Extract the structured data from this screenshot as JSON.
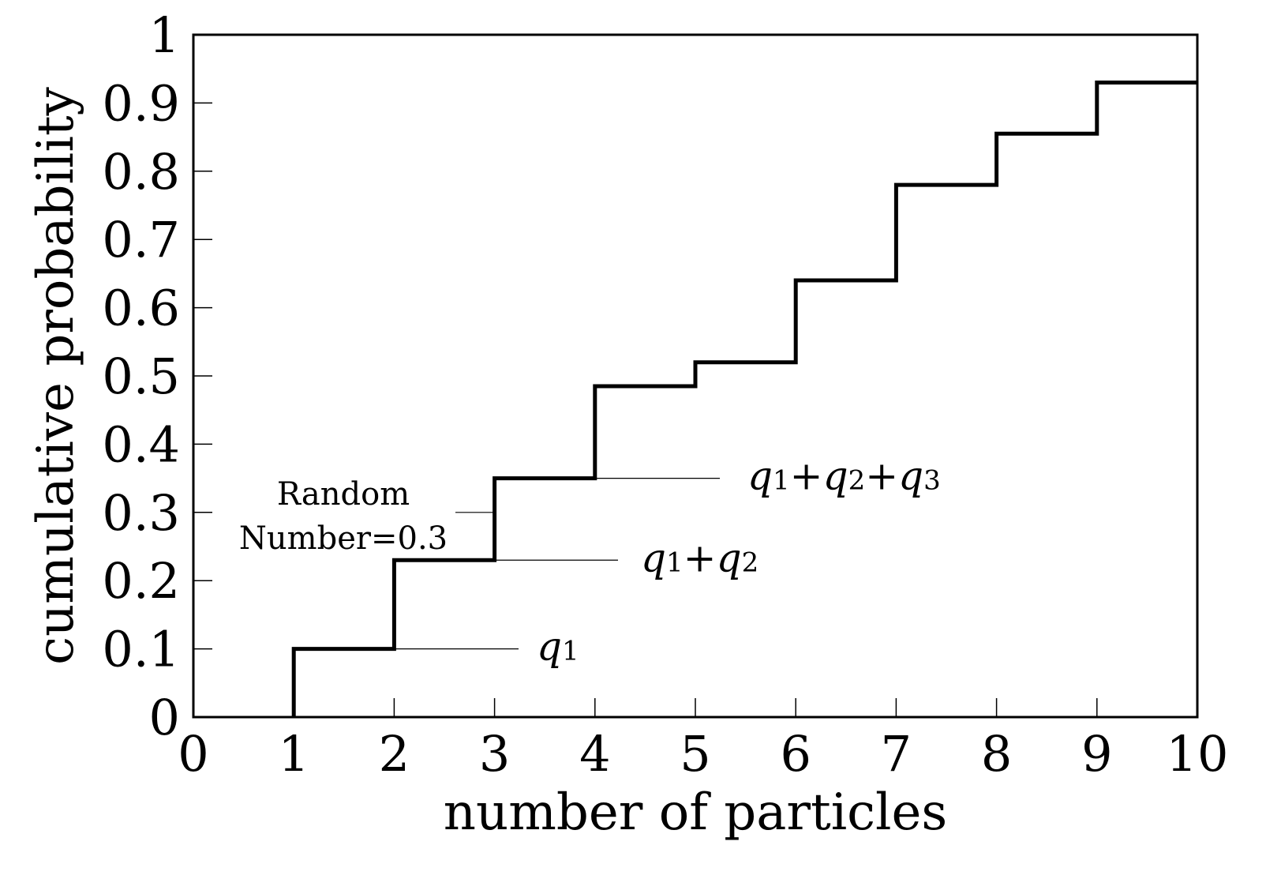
{
  "chart_data": {
    "type": "line",
    "step": "post",
    "x": [
      1,
      2,
      3,
      4,
      5,
      6,
      7,
      8,
      9,
      10
    ],
    "y": [
      0.1,
      0.23,
      0.35,
      0.485,
      0.52,
      0.64,
      0.78,
      0.855,
      0.93,
      0.93
    ],
    "xlabel": "number of particles",
    "ylabel": "cumulative probability",
    "xlim": [
      0,
      10
    ],
    "ylim": [
      0,
      1
    ],
    "xticks": [
      "0",
      "1",
      "2",
      "3",
      "4",
      "5",
      "6",
      "7",
      "8",
      "9",
      "10"
    ],
    "yticks": [
      "0",
      "0.1",
      "0.2",
      "0.3",
      "0.4",
      "0.5",
      "0.6",
      "0.7",
      "0.8",
      "0.9",
      "1"
    ],
    "grid": false,
    "annotations": {
      "random_number": {
        "line1": "Random",
        "line2": "Number=0.3",
        "x": 3,
        "y": 0.3
      },
      "q1": {
        "y": 0.1,
        "parts": [
          {
            "t": "q",
            "s": "1"
          }
        ]
      },
      "q1q2": {
        "y": 0.23,
        "parts": [
          {
            "t": "q",
            "s": "1"
          },
          {
            "t": "+"
          },
          {
            "t": "q",
            "s": "2"
          }
        ]
      },
      "q1q2q3": {
        "y": 0.35,
        "parts": [
          {
            "t": "q",
            "s": "1"
          },
          {
            "t": "+"
          },
          {
            "t": "q",
            "s": "2"
          },
          {
            "t": "+"
          },
          {
            "t": "q",
            "s": "3"
          }
        ]
      }
    }
  }
}
